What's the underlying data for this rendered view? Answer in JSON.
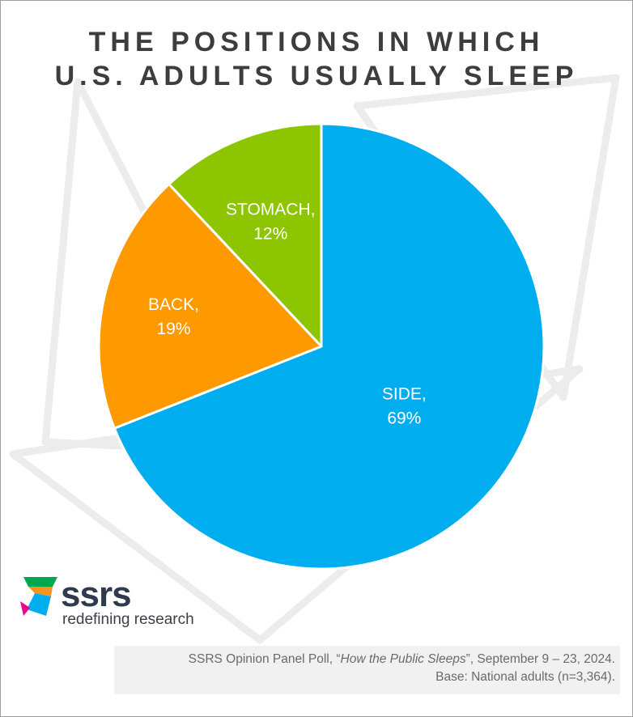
{
  "title": {
    "line1": "THE POSITIONS IN WHICH",
    "line2": "U.S. ADULTS USUALLY SLEEP"
  },
  "chart_data": {
    "type": "pie",
    "categories": [
      "SIDE",
      "BACK",
      "STOMACH"
    ],
    "values": [
      69,
      19,
      12
    ],
    "labels": [
      "SIDE,",
      "BACK,",
      "STOMACH,"
    ],
    "value_labels": [
      "69%",
      "19%",
      "12%"
    ],
    "colors": [
      "#00aeef",
      "#ff9900",
      "#8dc500"
    ],
    "start": "top, clockwise"
  },
  "logo": {
    "wordmark": "ssrs",
    "tagline": "redefining research",
    "colors": [
      "#00a651",
      "#f7941d",
      "#00aeef",
      "#ec008c"
    ]
  },
  "source": {
    "line1_prefix": "SSRS Opinion Panel Poll, “",
    "line1_title": "How the Public Sleeps",
    "line1_suffix": "”, September 9 – 23, 2024.",
    "line2": "Base: National adults (n=3,364)."
  }
}
